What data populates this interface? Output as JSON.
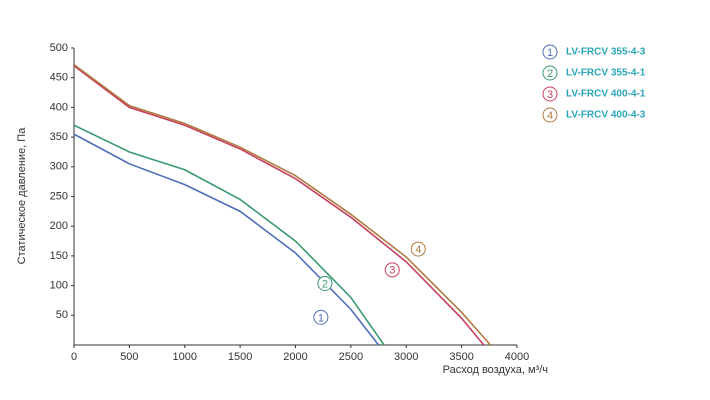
{
  "chart_data": {
    "type": "line",
    "x_label": "Расход воздуха, м³/ч",
    "y_label": "Статическое давление, Па",
    "xlim": [
      0,
      4000
    ],
    "xticks": [
      0,
      500,
      1000,
      1500,
      2000,
      2500,
      3000,
      3500,
      4000
    ],
    "ylim": [
      0,
      500
    ],
    "yticks": [
      50,
      100,
      150,
      200,
      250,
      300,
      350,
      400,
      450,
      500
    ],
    "grid": false,
    "legend": "right",
    "series": [
      {
        "name": "LV-FRCV 355-4-3",
        "label": "1",
        "color": "#4f6fb8",
        "x": [
          0,
          500,
          1000,
          1500,
          2000,
          2500,
          2750
        ],
        "values": [
          355,
          305,
          270,
          225,
          155,
          60,
          0
        ]
      },
      {
        "name": "LV-FRCV 355-4-1",
        "label": "2",
        "color": "#3a9a6e",
        "x": [
          0,
          500,
          1000,
          1500,
          2000,
          2500,
          2800
        ],
        "values": [
          370,
          325,
          295,
          245,
          175,
          80,
          0
        ]
      },
      {
        "name": "LV-FRCV 400-4-1",
        "label": "3",
        "color": "#c8405e",
        "x": [
          0,
          500,
          1000,
          1500,
          2000,
          2500,
          3000,
          3500,
          3700
        ],
        "values": [
          470,
          400,
          370,
          330,
          280,
          215,
          140,
          45,
          0
        ]
      },
      {
        "name": "LV-FRCV 400-4-3",
        "label": "4",
        "color": "#b07a40",
        "x": [
          0,
          500,
          1000,
          1500,
          2000,
          2500,
          3000,
          3500,
          3760
        ],
        "values": [
          472,
          403,
          373,
          333,
          285,
          220,
          148,
          55,
          0
        ]
      }
    ]
  }
}
